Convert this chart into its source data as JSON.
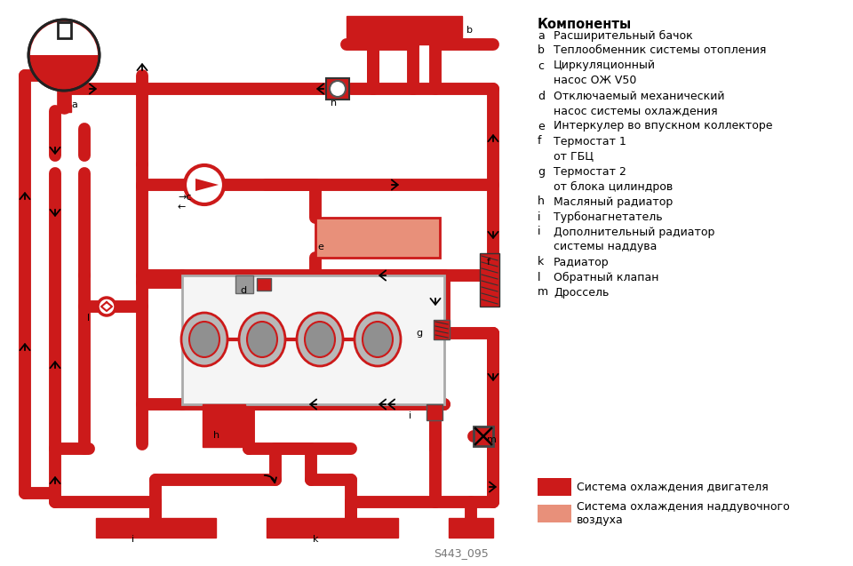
{
  "bg": "#ffffff",
  "dc": "#CC1A1A",
  "lc": "#E8907A",
  "border_c": "#AA1010",
  "legend_title": "Компоненты",
  "items": [
    [
      "a",
      "Расширительный бачок"
    ],
    [
      "b",
      "Теплообменник системы отопления"
    ],
    [
      "c",
      "Циркуляционный"
    ],
    [
      "",
      "насос ОЖ V50"
    ],
    [
      "d",
      "Отключаемый механический"
    ],
    [
      "",
      "насос системы охлаждения"
    ],
    [
      "e",
      "Интеркулер во впускном коллекторе"
    ],
    [
      "f",
      "Термостат 1"
    ],
    [
      "",
      "от ГБЦ"
    ],
    [
      "g",
      "Термостат 2"
    ],
    [
      "",
      "от блока цилиндров"
    ],
    [
      "h",
      "Масляный радиатор"
    ],
    [
      "i",
      "Турбонагнетатель"
    ],
    [
      "i",
      "Дополнительный радиатор"
    ],
    [
      "",
      "системы наддува"
    ],
    [
      "k",
      "Радиатор"
    ],
    [
      "l",
      "Обратный клапан"
    ],
    [
      "m",
      "Дроссель"
    ]
  ],
  "lt1": "Система охлаждения двигателя",
  "lt2": "Система охлаждения наддувочного\nвоздуха",
  "wm": "S443_095"
}
